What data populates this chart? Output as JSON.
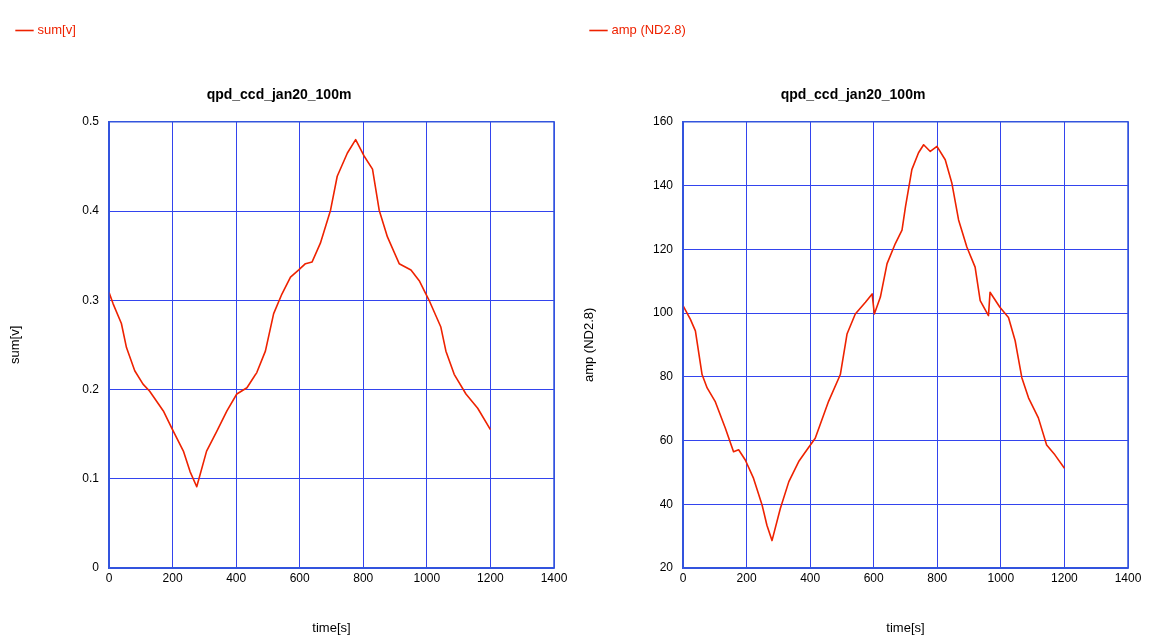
{
  "chart_data": [
    {
      "type": "line",
      "title": "qpd_ccd_jan20_100m",
      "xlabel": "time[s]",
      "ylabel": "sum[v]",
      "legend": "top left",
      "grid": true,
      "marker": "none",
      "line_style": "solid",
      "xlim": [
        0,
        1400
      ],
      "xticks": [
        0,
        200,
        400,
        600,
        800,
        1000,
        1200,
        1400
      ],
      "ylim": [
        0,
        0.5
      ],
      "yticks": [
        0,
        0.1,
        0.2,
        0.3,
        0.4,
        0.5
      ],
      "x": [
        0,
        13,
        39,
        55,
        81,
        107,
        128,
        171,
        197,
        234,
        255,
        276,
        307,
        339,
        371,
        402,
        434,
        465,
        492,
        518,
        544,
        571,
        597,
        618,
        639,
        665,
        697,
        718,
        750,
        776,
        802,
        829,
        850,
        876,
        913,
        950,
        976,
        1007,
        1044,
        1060,
        1086,
        1123,
        1160,
        1200
      ],
      "series": [
        {
          "name": "sum[v]",
          "color": "#ee2200",
          "values": [
            0.309,
            0.296,
            0.274,
            0.247,
            0.221,
            0.206,
            0.198,
            0.176,
            0.157,
            0.131,
            0.108,
            0.091,
            0.131,
            0.153,
            0.176,
            0.195,
            0.202,
            0.219,
            0.243,
            0.285,
            0.307,
            0.326,
            0.334,
            0.341,
            0.343,
            0.364,
            0.401,
            0.439,
            0.465,
            0.48,
            0.462,
            0.447,
            0.401,
            0.371,
            0.341,
            0.334,
            0.322,
            0.3,
            0.27,
            0.243,
            0.217,
            0.195,
            0.179,
            0.155
          ]
        }
      ]
    },
    {
      "type": "line",
      "title": "qpd_ccd_jan20_100m",
      "xlabel": "time[s]",
      "ylabel": "amp (ND2.8)",
      "legend": "top left",
      "grid": true,
      "marker": "none",
      "line_style": "solid",
      "xlim": [
        0,
        1400
      ],
      "xticks": [
        0,
        200,
        400,
        600,
        800,
        1000,
        1200,
        1400
      ],
      "ylim": [
        20,
        160
      ],
      "yticks": [
        20,
        40,
        60,
        80,
        100,
        120,
        140,
        160
      ],
      "x": [
        0,
        23,
        39,
        60,
        76,
        101,
        133,
        159,
        175,
        196,
        222,
        249,
        264,
        280,
        306,
        333,
        364,
        390,
        416,
        458,
        495,
        516,
        542,
        574,
        595,
        602,
        621,
        642,
        668,
        689,
        700,
        720,
        741,
        757,
        778,
        799,
        825,
        846,
        867,
        893,
        919,
        935,
        961,
        966,
        997,
        1024,
        1045,
        1066,
        1087,
        1118,
        1144,
        1170,
        1200
      ],
      "series": [
        {
          "name": "amp (ND2.8)",
          "color": "#ee2200",
          "values": [
            102.3,
            98.1,
            94.4,
            80.7,
            76.5,
            72.3,
            63.9,
            56.5,
            57.1,
            53.9,
            48.1,
            39.7,
            33.4,
            28.6,
            38.6,
            47.1,
            53.4,
            57.1,
            60.7,
            72.3,
            80.7,
            93.4,
            99.7,
            103.4,
            106.0,
            99.7,
            105.0,
            115.5,
            121.8,
            126.0,
            133.4,
            145.0,
            150.3,
            152.8,
            150.7,
            152.3,
            148.1,
            140.7,
            129.2,
            120.7,
            114.4,
            103.9,
            99.2,
            106.5,
            101.8,
            98.6,
            91.3,
            79.7,
            73.4,
            67.1,
            58.6,
            55.5,
            51.3
          ]
        }
      ]
    }
  ]
}
